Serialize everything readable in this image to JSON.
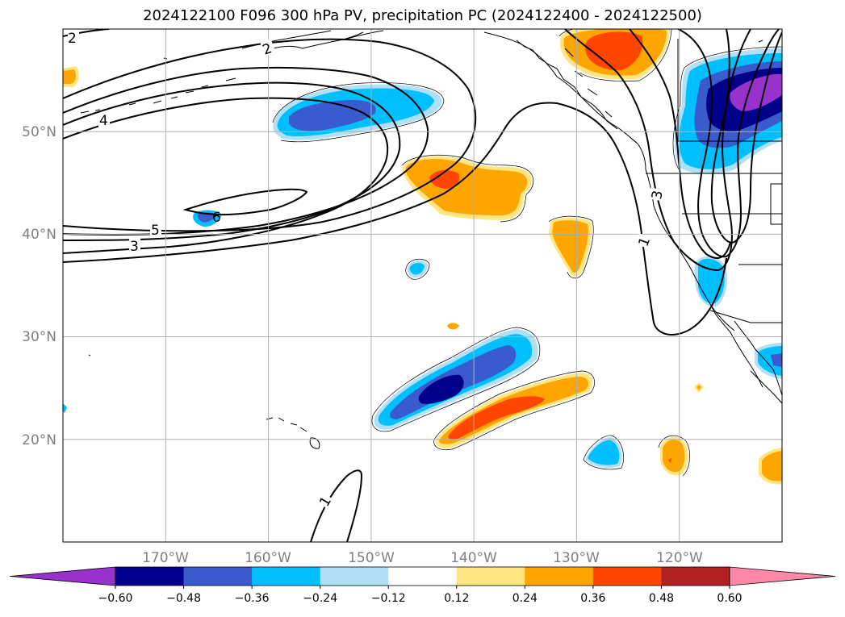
{
  "title": "2024122100 F096 300 hPa PV, precipitation PC (2024122400 - 2024122500)",
  "map": {
    "lon_range": [
      -180,
      -110
    ],
    "lat_range": [
      10,
      60
    ],
    "lat_ticks": [
      {
        "value": 50,
        "label": "50°N"
      },
      {
        "value": 40,
        "label": "40°N"
      },
      {
        "value": 30,
        "label": "30°N"
      },
      {
        "value": 20,
        "label": "20°N"
      }
    ],
    "lon_ticks": [
      {
        "value": -170,
        "label": "170°W"
      },
      {
        "value": -160,
        "label": "160°W"
      },
      {
        "value": -150,
        "label": "150°W"
      },
      {
        "value": -140,
        "label": "140°W"
      },
      {
        "value": -130,
        "label": "130°W"
      },
      {
        "value": -120,
        "label": "120°W"
      }
    ],
    "pv_contour_labels": [
      {
        "text": "2"
      },
      {
        "text": "2"
      },
      {
        "text": "4"
      },
      {
        "text": "6"
      },
      {
        "text": "5"
      },
      {
        "text": "3"
      },
      {
        "text": "3"
      },
      {
        "text": "1"
      },
      {
        "text": "1"
      }
    ]
  },
  "colorbar": {
    "ticks": [
      "−0.60",
      "−0.48",
      "−0.36",
      "−0.24",
      "−0.12",
      "0.12",
      "0.24",
      "0.36",
      "0.48",
      "0.60"
    ],
    "colors": [
      "#9932cc",
      "#00008b",
      "#3a5bcd",
      "#00bfff",
      "#b0e0f8",
      "#ffffff",
      "#ffe680",
      "#ffa500",
      "#ff4500",
      "#b22222",
      "#ff88a8"
    ]
  }
}
